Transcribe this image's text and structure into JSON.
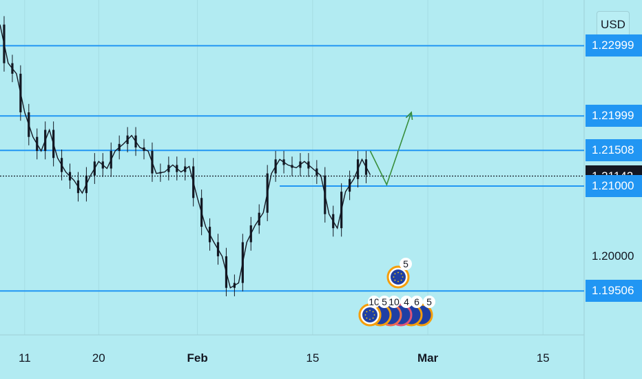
{
  "toolbar": {
    "currency": "USD"
  },
  "price_axis": {
    "levels": [
      {
        "label": "1.22999",
        "value": 1.22999,
        "style": "level"
      },
      {
        "label": "1.21999",
        "value": 1.21999,
        "style": "level"
      },
      {
        "label": "1.21508",
        "value": 1.21508,
        "style": "level"
      },
      {
        "label": "1.21142",
        "value": 1.21142,
        "style": "current"
      },
      {
        "label": "1.21000",
        "value": 1.21,
        "style": "level"
      },
      {
        "label": "1.19506",
        "value": 1.19506,
        "style": "level"
      }
    ],
    "plain_labels": [
      {
        "label": "1.20000",
        "value": 1.2
      }
    ]
  },
  "time_axis": {
    "labels": [
      {
        "label": "11",
        "strong": false
      },
      {
        "label": "20",
        "strong": false
      },
      {
        "label": "Feb",
        "strong": true
      },
      {
        "label": "15",
        "strong": false
      },
      {
        "label": "Mar",
        "strong": true
      },
      {
        "label": "15",
        "strong": false
      }
    ]
  },
  "events": {
    "upper": {
      "count": "5"
    },
    "lower": {
      "counts": [
        "10",
        "5",
        "10",
        "4",
        "6",
        "5"
      ]
    }
  },
  "colors": {
    "background": "#b2ebf2",
    "level_line": "#2196f3",
    "price_line": "#131722",
    "arrow": "#388e3c",
    "candle": "#131722",
    "current_tag": "#131722"
  },
  "chart_data": {
    "type": "line",
    "title": "",
    "xlabel": "",
    "ylabel": "",
    "x_range": [
      "2021-01-08",
      "2021-03-20"
    ],
    "ylim": [
      1.1888,
      1.2365
    ],
    "x_ticks": [
      "2021-01-11",
      "2021-01-20",
      "2021-02-01",
      "2021-02-15",
      "2021-03-01",
      "2021-03-15"
    ],
    "horizontal_levels": [
      1.22999,
      1.21999,
      1.21508,
      1.21,
      1.19506
    ],
    "current_price": 1.21142,
    "series": [
      {
        "x": [
          "2021-01-08",
          "2021-01-09",
          "2021-01-10",
          "2021-01-11",
          "2021-01-12",
          "2021-01-13",
          "2021-01-14",
          "2021-01-15",
          "2021-01-16",
          "2021-01-17",
          "2021-01-18",
          "2021-01-19",
          "2021-01-20",
          "2021-01-21",
          "2021-01-22",
          "2021-01-23",
          "2021-01-24",
          "2021-01-25",
          "2021-01-26",
          "2021-01-27",
          "2021-01-28",
          "2021-01-29",
          "2021-01-30",
          "2021-01-31",
          "2021-02-01",
          "2021-02-02",
          "2021-02-03",
          "2021-02-04",
          "2021-02-05",
          "2021-02-06",
          "2021-02-07",
          "2021-02-08",
          "2021-02-09",
          "2021-02-10",
          "2021-02-11",
          "2021-02-12",
          "2021-02-13",
          "2021-02-14",
          "2021-02-15",
          "2021-02-16",
          "2021-02-17",
          "2021-02-18",
          "2021-02-19",
          "2021-02-20",
          "2021-02-21",
          "2021-02-22"
        ],
        "values": [
          1.233,
          1.2275,
          1.226,
          1.2205,
          1.217,
          1.215,
          1.218,
          1.214,
          1.212,
          1.2108,
          1.209,
          1.2115,
          1.2135,
          1.2125,
          1.215,
          1.216,
          1.2172,
          1.2155,
          1.215,
          1.2118,
          1.212,
          1.213,
          1.212,
          1.2128,
          1.2083,
          1.2042,
          1.202,
          1.2,
          1.1955,
          1.1962,
          1.202,
          1.2044,
          1.2062,
          1.2118,
          1.2138,
          1.213,
          1.2126,
          1.2135,
          1.2125,
          1.2115,
          1.206,
          1.204,
          1.2092,
          1.211,
          1.2138,
          1.2116
        ]
      }
    ],
    "projection": {
      "points": [
        {
          "x": "2021-02-22",
          "y": 1.215
        },
        {
          "x": "2021-02-24",
          "y": 1.2102
        },
        {
          "x": "2021-02-27",
          "y": 1.2205
        }
      ]
    }
  }
}
